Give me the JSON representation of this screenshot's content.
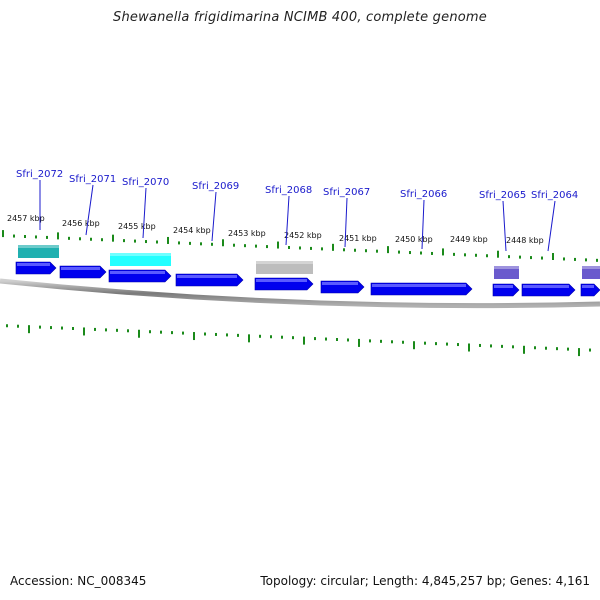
{
  "title": "Shewanella frigidimarina NCIMB 400, complete genome",
  "footer": {
    "accession": "Accession: NC_008345",
    "summary": "Topology: circular; Length: 4,845,257 bp; Genes: 4,161"
  },
  "colors": {
    "cds": "#0000ee",
    "label": "#1a1acc",
    "tick": "#1a8a1a",
    "backbone": "#888888",
    "feature_teal": "#20b0b0",
    "feature_cyan": "#22ffff",
    "feature_gray": "#bdbdbd",
    "feature_purple": "#6a5acd"
  },
  "kbp_labels": [
    "2457 kbp",
    "2456 kbp",
    "2455 kbp",
    "2454 kbp",
    "2453 kbp",
    "2452 kbp",
    "2451 kbp",
    "2450 kbp",
    "2449 kbp",
    "2448 kbp"
  ],
  "gene_labels": [
    "Sfri_2072",
    "Sfri_2071",
    "Sfri_2070",
    "Sfri_2069",
    "Sfri_2068",
    "Sfri_2067",
    "Sfri_2066",
    "Sfri_2065",
    "Sfri_2064"
  ]
}
